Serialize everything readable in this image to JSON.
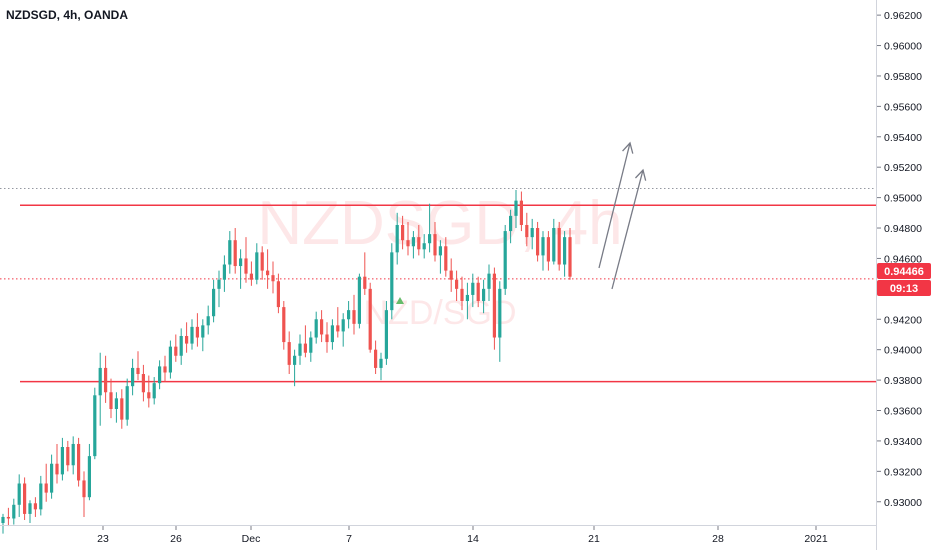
{
  "header": {
    "symbol_title": "NZDSGD, 4h, OANDA"
  },
  "watermark": {
    "ticker": "NZDSGD, 4h",
    "pair": "NZD/SGD"
  },
  "price_axis": {
    "last_price_label": "0.94466",
    "countdown_label": "09:13"
  },
  "colors": {
    "up": "#26a69a",
    "down": "#ef5350",
    "level_line": "#f23645",
    "price_tag": "#f23645",
    "axis_text": "#131722",
    "arrow": "#787b86"
  },
  "chart_data": {
    "type": "candlestick",
    "title": "NZDSGD, 4h, OANDA",
    "ylim": [
      0.9288,
      0.9626
    ],
    "y_ticks": [
      "0.93000",
      "0.93200",
      "0.93400",
      "0.93600",
      "0.93800",
      "0.94000",
      "0.94200",
      "0.94400",
      "0.94600",
      "0.94800",
      "0.95000",
      "0.95200",
      "0.95400",
      "0.95600",
      "0.95800",
      "0.96000",
      "0.96200"
    ],
    "x_ticks": [
      "23",
      "26",
      "Dec",
      "7",
      "14",
      "21",
      "28",
      "2021"
    ],
    "last_price": 0.94466,
    "horizontal_levels": [
      {
        "price": 0.9495,
        "style": "solid"
      },
      {
        "price": 0.9379,
        "style": "solid"
      },
      {
        "price": 0.9506,
        "style": "dotted"
      },
      {
        "price": 0.94466,
        "style": "dotted"
      }
    ],
    "projection_arrows": [
      {
        "from": [
          "Dec 21",
          0.945
        ],
        "to": [
          "Dec 23",
          0.9532
        ]
      },
      {
        "from": [
          "Dec 22",
          0.9439
        ],
        "to": [
          "Dec 24",
          0.9513
        ]
      }
    ],
    "candles": [
      [
        0.9286,
        0.9292,
        0.9279,
        0.929
      ],
      [
        0.929,
        0.9296,
        0.9284,
        0.9289
      ],
      [
        0.9289,
        0.9302,
        0.9285,
        0.9298
      ],
      [
        0.9298,
        0.9318,
        0.929,
        0.9312
      ],
      [
        0.9312,
        0.9316,
        0.9288,
        0.9292
      ],
      [
        0.9292,
        0.9301,
        0.9286,
        0.9299
      ],
      [
        0.9299,
        0.9303,
        0.929,
        0.9295
      ],
      [
        0.9295,
        0.9317,
        0.9291,
        0.9312
      ],
      [
        0.9312,
        0.9325,
        0.93,
        0.9306
      ],
      [
        0.9306,
        0.9331,
        0.9302,
        0.9325
      ],
      [
        0.9325,
        0.9338,
        0.9312,
        0.9318
      ],
      [
        0.9318,
        0.9342,
        0.9314,
        0.9336
      ],
      [
        0.9336,
        0.934,
        0.932,
        0.9324
      ],
      [
        0.9324,
        0.9343,
        0.9318,
        0.9338
      ],
      [
        0.9338,
        0.9342,
        0.931,
        0.9314
      ],
      [
        0.9314,
        0.932,
        0.929,
        0.9303
      ],
      [
        0.9303,
        0.9338,
        0.9301,
        0.933
      ],
      [
        0.933,
        0.9375,
        0.9328,
        0.937
      ],
      [
        0.937,
        0.9398,
        0.935,
        0.9388
      ],
      [
        0.9388,
        0.9396,
        0.9365,
        0.9372
      ],
      [
        0.9372,
        0.9381,
        0.9355,
        0.9361
      ],
      [
        0.9361,
        0.9372,
        0.9352,
        0.9368
      ],
      [
        0.9368,
        0.9374,
        0.9348,
        0.9354
      ],
      [
        0.9354,
        0.9381,
        0.935,
        0.9376
      ],
      [
        0.9376,
        0.9394,
        0.937,
        0.9388
      ],
      [
        0.9388,
        0.9399,
        0.938,
        0.9384
      ],
      [
        0.9384,
        0.939,
        0.9366,
        0.9372
      ],
      [
        0.9372,
        0.9383,
        0.9362,
        0.9368
      ],
      [
        0.9368,
        0.9382,
        0.9364,
        0.9378
      ],
      [
        0.9378,
        0.9393,
        0.9374,
        0.9389
      ],
      [
        0.9389,
        0.9396,
        0.9379,
        0.9385
      ],
      [
        0.9385,
        0.9406,
        0.9381,
        0.9402
      ],
      [
        0.9402,
        0.941,
        0.9392,
        0.9396
      ],
      [
        0.9396,
        0.9414,
        0.939,
        0.9409
      ],
      [
        0.9409,
        0.9418,
        0.9398,
        0.9404
      ],
      [
        0.9404,
        0.942,
        0.94,
        0.9415
      ],
      [
        0.9415,
        0.9424,
        0.9402,
        0.9408
      ],
      [
        0.9408,
        0.942,
        0.9399,
        0.9416
      ],
      [
        0.9416,
        0.9429,
        0.941,
        0.9422
      ],
      [
        0.9422,
        0.9446,
        0.9418,
        0.944
      ],
      [
        0.944,
        0.9452,
        0.9428,
        0.9446
      ],
      [
        0.9446,
        0.9462,
        0.9438,
        0.9456
      ],
      [
        0.9456,
        0.9478,
        0.945,
        0.9472
      ],
      [
        0.9472,
        0.948,
        0.945,
        0.9455
      ],
      [
        0.9455,
        0.9466,
        0.944,
        0.946
      ],
      [
        0.946,
        0.9474,
        0.9444,
        0.945
      ],
      [
        0.945,
        0.9458,
        0.9442,
        0.9446
      ],
      [
        0.9446,
        0.947,
        0.9443,
        0.9464
      ],
      [
        0.9464,
        0.9468,
        0.9446,
        0.9452
      ],
      [
        0.9452,
        0.9466,
        0.944,
        0.9449
      ],
      [
        0.9449,
        0.9458,
        0.9437,
        0.9445
      ],
      [
        0.9445,
        0.945,
        0.9424,
        0.9428
      ],
      [
        0.9428,
        0.9432,
        0.94,
        0.9405
      ],
      [
        0.9405,
        0.9412,
        0.9384,
        0.939
      ],
      [
        0.939,
        0.94,
        0.9376,
        0.9396
      ],
      [
        0.9396,
        0.941,
        0.939,
        0.9404
      ],
      [
        0.9404,
        0.9416,
        0.9395,
        0.9398
      ],
      [
        0.9398,
        0.9412,
        0.9392,
        0.9408
      ],
      [
        0.9408,
        0.9425,
        0.9404,
        0.942
      ],
      [
        0.942,
        0.9426,
        0.9405,
        0.941
      ],
      [
        0.941,
        0.9418,
        0.9398,
        0.9405
      ],
      [
        0.9405,
        0.942,
        0.94,
        0.9416
      ],
      [
        0.9416,
        0.9428,
        0.9408,
        0.9412
      ],
      [
        0.9412,
        0.9424,
        0.9402,
        0.942
      ],
      [
        0.942,
        0.9432,
        0.9414,
        0.9426
      ],
      [
        0.9426,
        0.9436,
        0.941,
        0.9417
      ],
      [
        0.9417,
        0.945,
        0.9414,
        0.9448
      ],
      [
        0.9448,
        0.9464,
        0.9436,
        0.944
      ],
      [
        0.944,
        0.9444,
        0.9398,
        0.94
      ],
      [
        0.94,
        0.9406,
        0.9384,
        0.9388
      ],
      [
        0.9388,
        0.9398,
        0.938,
        0.9394
      ],
      [
        0.9394,
        0.9432,
        0.939,
        0.9426
      ],
      [
        0.9426,
        0.947,
        0.942,
        0.9464
      ],
      [
        0.9464,
        0.949,
        0.9456,
        0.9482
      ],
      [
        0.9482,
        0.9488,
        0.9466,
        0.9472
      ],
      [
        0.9472,
        0.9484,
        0.9462,
        0.9468
      ],
      [
        0.9468,
        0.9478,
        0.946,
        0.9474
      ],
      [
        0.9474,
        0.9482,
        0.9462,
        0.9466
      ],
      [
        0.9466,
        0.9476,
        0.946,
        0.947
      ],
      [
        0.947,
        0.9496,
        0.9464,
        0.9476
      ],
      [
        0.9476,
        0.9484,
        0.9458,
        0.9462
      ],
      [
        0.9462,
        0.9472,
        0.945,
        0.9468
      ],
      [
        0.9468,
        0.9474,
        0.9448,
        0.9452
      ],
      [
        0.9452,
        0.946,
        0.9438,
        0.9446
      ],
      [
        0.9446,
        0.9452,
        0.9432,
        0.944
      ],
      [
        0.944,
        0.9448,
        0.9426,
        0.9432
      ],
      [
        0.9432,
        0.9444,
        0.942,
        0.9436
      ],
      [
        0.9436,
        0.945,
        0.9428,
        0.9444
      ],
      [
        0.9444,
        0.9448,
        0.9428,
        0.9432
      ],
      [
        0.9432,
        0.9446,
        0.9424,
        0.944
      ],
      [
        0.944,
        0.9456,
        0.9432,
        0.945
      ],
      [
        0.945,
        0.9454,
        0.94,
        0.9408
      ],
      [
        0.9408,
        0.9445,
        0.9392,
        0.944
      ],
      [
        0.944,
        0.9482,
        0.9436,
        0.9478
      ],
      [
        0.9478,
        0.9492,
        0.947,
        0.9488
      ],
      [
        0.9488,
        0.9505,
        0.948,
        0.9498
      ],
      [
        0.9498,
        0.9504,
        0.9478,
        0.9482
      ],
      [
        0.9482,
        0.949,
        0.9468,
        0.9474
      ],
      [
        0.9474,
        0.9486,
        0.9466,
        0.948
      ],
      [
        0.948,
        0.9484,
        0.9458,
        0.9462
      ],
      [
        0.9462,
        0.9478,
        0.9452,
        0.9474
      ],
      [
        0.9474,
        0.9478,
        0.9452,
        0.9458
      ],
      [
        0.9458,
        0.9486,
        0.9456,
        0.948
      ],
      [
        0.948,
        0.9484,
        0.9452,
        0.9456
      ],
      [
        0.9456,
        0.9478,
        0.9448,
        0.9474
      ],
      [
        0.9474,
        0.948,
        0.9446,
        0.9448
      ]
    ]
  }
}
